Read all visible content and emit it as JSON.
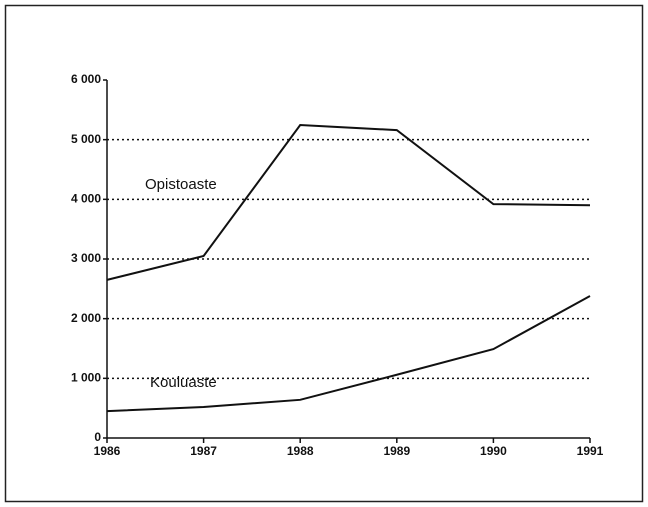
{
  "chart_data": {
    "type": "line",
    "x": [
      1986,
      1987,
      1988,
      1989,
      1990,
      1991
    ],
    "xlim": [
      1986,
      1991
    ],
    "xticks": [
      1986,
      1987,
      1988,
      1989,
      1990,
      1991
    ],
    "ylim": [
      0,
      6000
    ],
    "yticks": [
      0,
      {
        "value": 1000,
        "label": "1 000"
      },
      {
        "value": 2000,
        "label": "2 000"
      },
      {
        "value": 3000,
        "label": "3 000"
      },
      {
        "value": 4000,
        "label": "4 000"
      },
      {
        "value": 5000,
        "label": "5 000"
      },
      {
        "value": 6000,
        "label": "6 000"
      }
    ],
    "grid": true,
    "series": [
      {
        "name": "Opistoaste",
        "color": "#111111",
        "values": [
          2650,
          3050,
          5245,
          5160,
          3920,
          3900
        ]
      },
      {
        "name": "Kouluaste",
        "color": "#111111",
        "values": [
          450,
          520,
          640,
          1060,
          1490,
          2380
        ]
      }
    ]
  }
}
